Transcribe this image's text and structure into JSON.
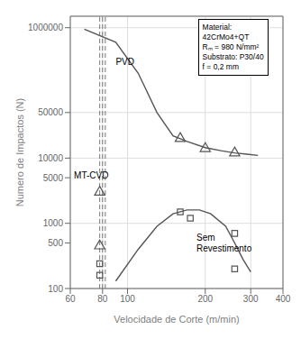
{
  "chart_data": {
    "type": "line",
    "xlabel": "Velocidade de Corte (m/min)",
    "ylabel": "Numero de Impactos (N)",
    "log": true,
    "grid": true,
    "xlim": [
      60,
      400
    ],
    "ylim": [
      100,
      1500000
    ],
    "xticks": [
      60,
      80,
      100,
      200,
      300,
      400
    ],
    "yticks": [
      100,
      500,
      1000,
      5000,
      10000,
      50000,
      1000000
    ],
    "series": [
      {
        "type": "line",
        "color": "#555555",
        "x": [
          68,
          90,
          110,
          130,
          150,
          170,
          200,
          230,
          260,
          290,
          320
        ],
        "values": [
          950000,
          600000,
          200000,
          50000,
          22000,
          18000,
          14500,
          13000,
          12000,
          11500,
          11000
        ]
      },
      {
        "type": "scatter",
        "marker": "triangle",
        "color": "#555555",
        "x": [
          160,
          200,
          260
        ],
        "values": [
          20000,
          14000,
          12000
        ]
      },
      {
        "type": "scatter",
        "marker": "triangle",
        "color": "#555555",
        "x": [
          78,
          78
        ],
        "values": [
          3000,
          450
        ]
      },
      {
        "type": "line",
        "color": "#555555",
        "x": [
          90,
          110,
          130,
          150,
          170,
          190,
          210,
          240,
          260,
          280,
          300
        ],
        "values": [
          130,
          400,
          900,
          1400,
          1600,
          1600,
          1400,
          900,
          500,
          280,
          180
        ]
      },
      {
        "type": "scatter",
        "marker": "square",
        "color": "#555555",
        "x": [
          78,
          78,
          160,
          175,
          260,
          260
        ],
        "values": [
          240,
          160,
          1500,
          1200,
          700,
          200
        ]
      }
    ],
    "reference_lines": {
      "x": [
        78,
        80,
        82
      ],
      "line_style": "dashed",
      "color": "#555555"
    },
    "annotations": [
      {
        "text": "PVD",
        "x": 90,
        "y": 300000
      },
      {
        "text": "MT-CVD",
        "x": 62,
        "y": 5500
      },
      {
        "text": "Sem\nRevestimento",
        "x": 185,
        "y": 500
      }
    ],
    "text_box": "Material:\n42CrMo4+QT\nRₘ = 980 N/mm²\nSubstrato: P30/40\nf = 0,2 mm"
  }
}
